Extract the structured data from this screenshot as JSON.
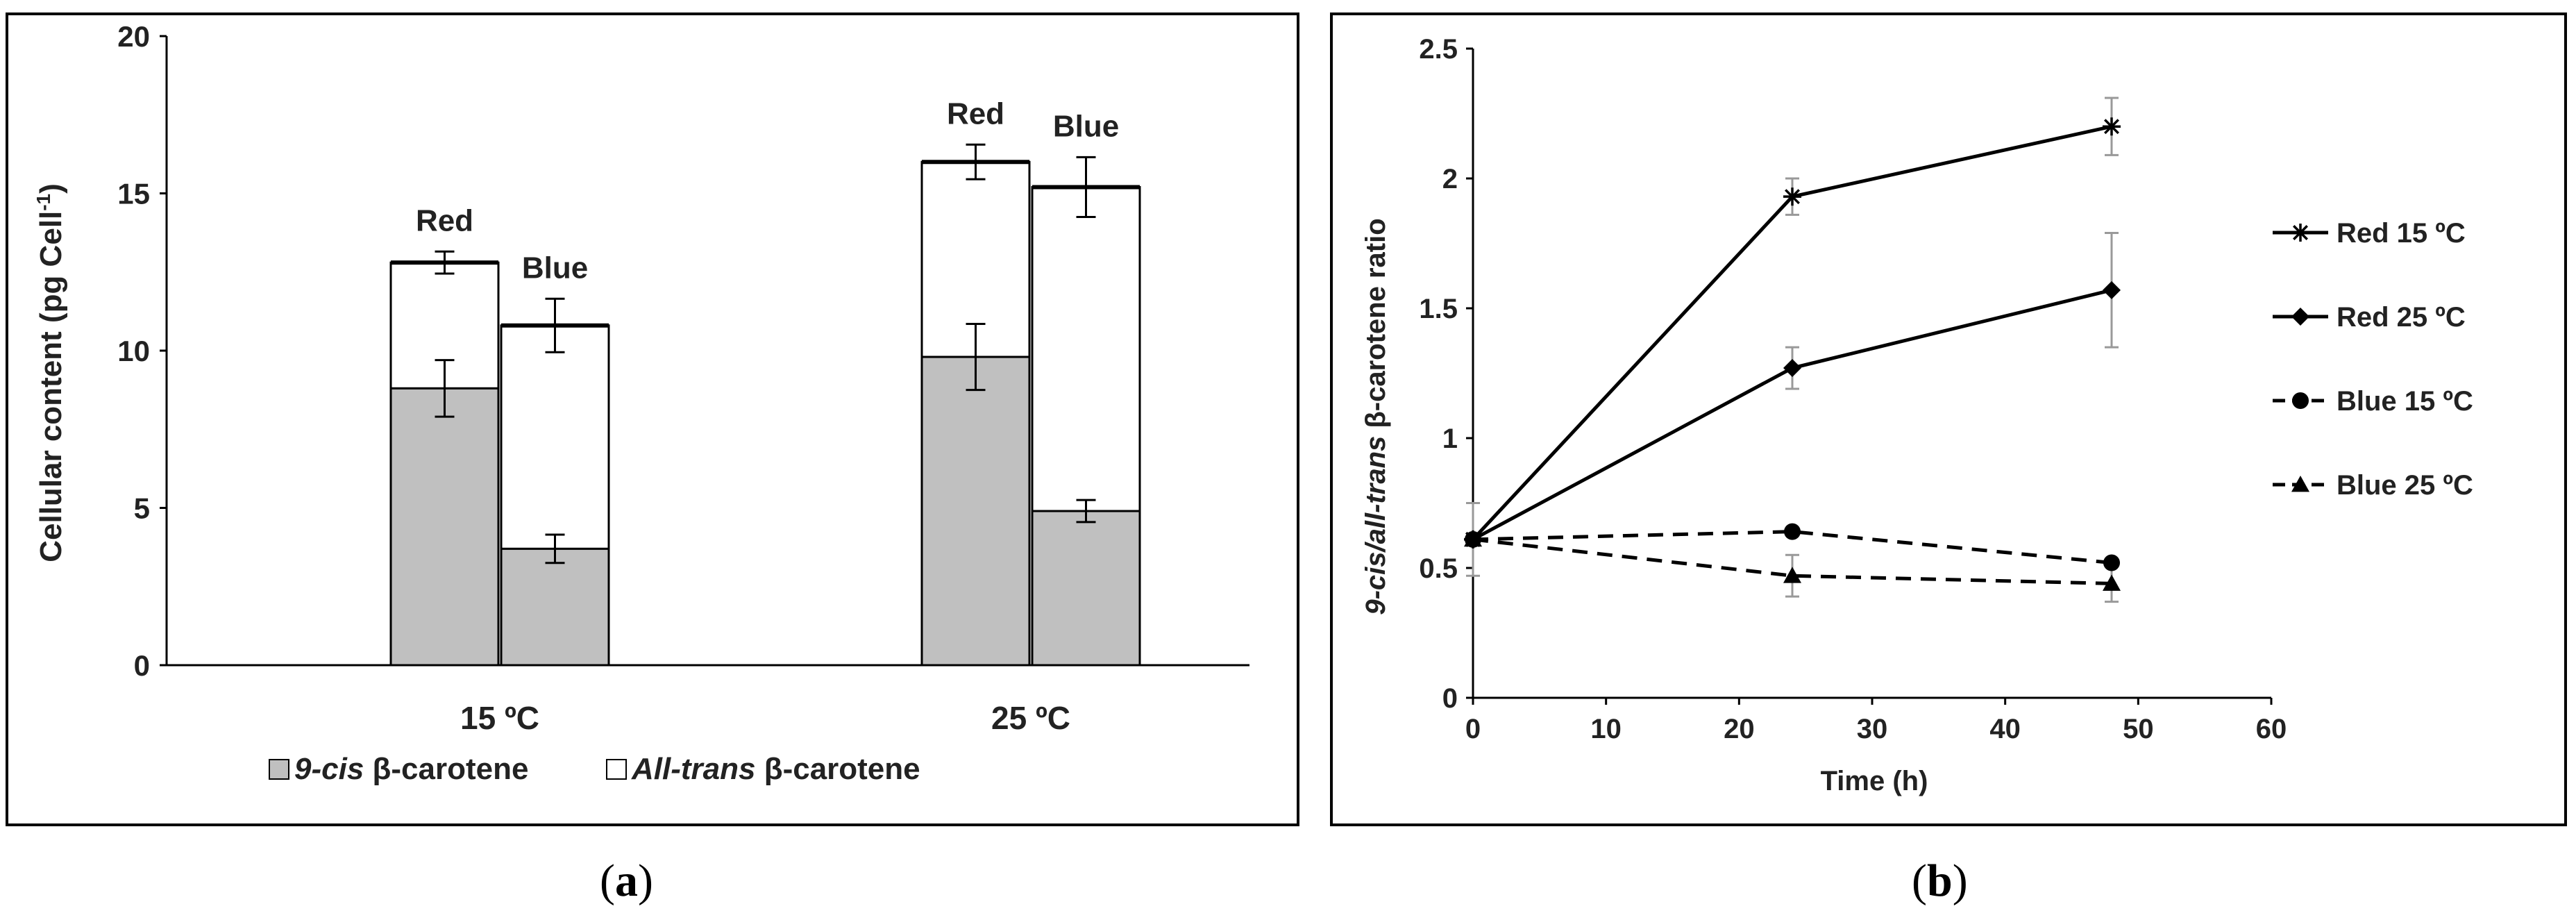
{
  "chart_data": [
    {
      "type": "bar",
      "stacked": true,
      "panel": "a",
      "caption_open": "(",
      "caption_letter": "a",
      "caption_close": ")",
      "ylabel": "Cellular content (pg Cell",
      "ylabel_sup": "-1",
      "ylabel_close": ")",
      "ylim": [
        0,
        20
      ],
      "yticks": [
        "0",
        "5",
        "10",
        "15",
        "20"
      ],
      "categories": [
        "15 ºC",
        "25 ºC"
      ],
      "groups": [
        {
          "category": "15 ºC",
          "bars": [
            {
              "label": "Red",
              "cis": 8.8,
              "cis_err": 0.9,
              "total": 12.8,
              "total_err": 0.35
            },
            {
              "label": "Blue",
              "cis": 3.7,
              "cis_err": 0.45,
              "total": 10.8,
              "total_err": 0.85
            }
          ]
        },
        {
          "category": "25 ºC",
          "bars": [
            {
              "label": "Red",
              "cis": 9.8,
              "cis_err": 1.05,
              "total": 16.0,
              "total_err": 0.55
            },
            {
              "label": "Blue",
              "cis": 4.9,
              "cis_err": 0.35,
              "total": 15.2,
              "total_err": 0.95
            }
          ]
        }
      ],
      "legend": [
        {
          "italic": "9-cis",
          "rest": " β-carotene",
          "color": "#c0c0c0"
        },
        {
          "italic": "All-trans",
          "rest": " β-carotene",
          "color": "#ffffff"
        }
      ]
    },
    {
      "type": "line",
      "panel": "b",
      "caption_open": "(",
      "caption_letter": "b",
      "caption_close": ")",
      "xlabel": "Time (h)",
      "ylabel_italic": "9-cis/all-trans",
      "ylabel_rest": " β-carotene ratio",
      "xlim": [
        0,
        60
      ],
      "ylim": [
        0,
        2.5
      ],
      "xticks": [
        "0",
        "10",
        "20",
        "30",
        "40",
        "50",
        "60"
      ],
      "yticks": [
        "0",
        "0.5",
        "1",
        "1.5",
        "2",
        "2.5"
      ],
      "series": [
        {
          "name": "Red 15 ºC",
          "marker": "star",
          "dash": false,
          "x": [
            0,
            24,
            48
          ],
          "y": [
            0.61,
            1.93,
            2.2
          ],
          "err": [
            0.14,
            0.07,
            0.11
          ]
        },
        {
          "name": "Red 25 ºC",
          "marker": "diamond",
          "dash": false,
          "x": [
            0,
            24,
            48
          ],
          "y": [
            0.61,
            1.27,
            1.57
          ],
          "err": [
            0.0,
            0.08,
            0.22
          ]
        },
        {
          "name": "Blue 15 ºC",
          "marker": "circle",
          "dash": true,
          "x": [
            0,
            24,
            48
          ],
          "y": [
            0.61,
            0.64,
            0.52
          ],
          "err": [
            0.0,
            0.0,
            0.0
          ]
        },
        {
          "name": "Blue 25 ºC",
          "marker": "triangle",
          "dash": true,
          "x": [
            0,
            24,
            48
          ],
          "y": [
            0.61,
            0.47,
            0.44
          ],
          "err": [
            0.0,
            0.08,
            0.07
          ]
        }
      ]
    }
  ]
}
